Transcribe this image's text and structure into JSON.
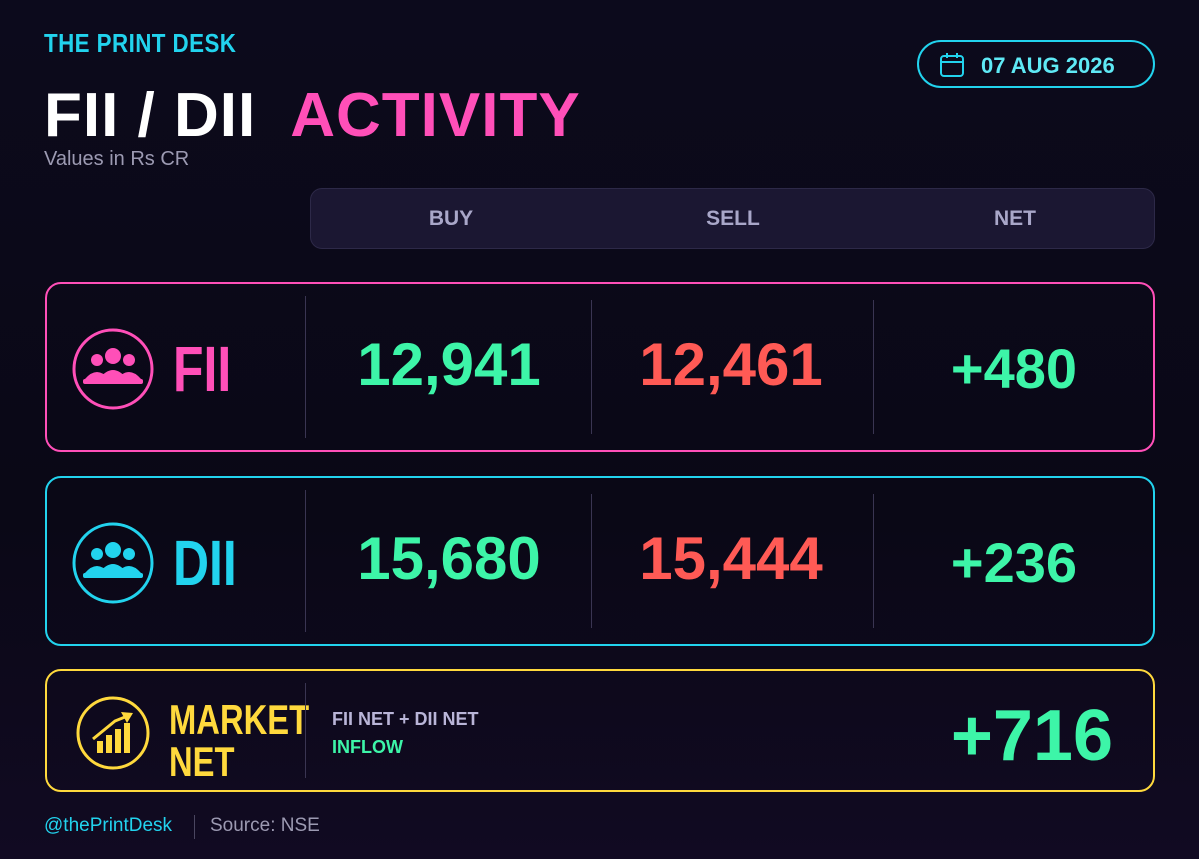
{
  "header": {
    "brand": "THE PRINT DESK",
    "title_main": "FII / DII",
    "title_accent": "ACTIVITY",
    "subtitle": "Values in Rs CR",
    "date": "07 AUG 2026"
  },
  "table": {
    "columns": [
      "BUY",
      "SELL",
      "NET"
    ],
    "rows": [
      {
        "label": "FII",
        "buy": "12,941",
        "sell": "12,461",
        "net": "+480"
      },
      {
        "label": "DII",
        "buy": "15,680",
        "sell": "15,444",
        "net": "+236"
      }
    ]
  },
  "market_net": {
    "label_line1": "MARKET",
    "label_line2": "NET",
    "formula": "FII NET + DII NET",
    "status": "INFLOW",
    "value": "+716"
  },
  "footer": {
    "handle": "@thePrintDesk",
    "source": "Source: NSE"
  }
}
